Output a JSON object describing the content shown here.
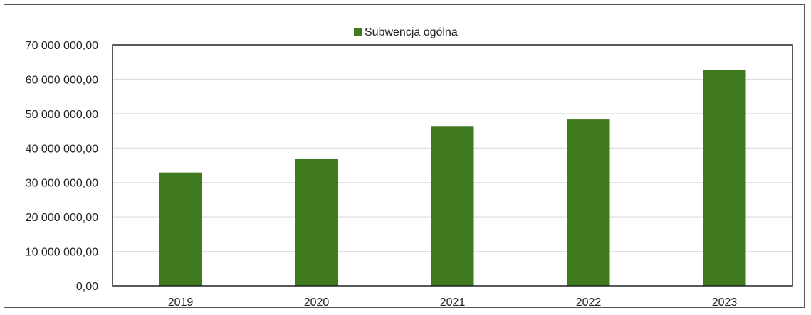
{
  "chart_data": {
    "type": "bar",
    "categories": [
      "2019",
      "2020",
      "2021",
      "2022",
      "2023"
    ],
    "series": [
      {
        "name": "Subwencja ogólna",
        "values": [
          32900000,
          36800000,
          46400000,
          48300000,
          62700000
        ],
        "color": "#3f7a1f"
      }
    ],
    "ylim": [
      0,
      70000000
    ],
    "yticks": [
      0,
      10000000,
      20000000,
      30000000,
      40000000,
      50000000,
      60000000,
      70000000
    ],
    "ytick_labels": [
      "0,00",
      "10 000 000,00",
      "20 000 000,00",
      "30 000 000,00",
      "40 000 000,00",
      "50 000 000,00",
      "60 000 000,00",
      "70 000 000,00"
    ],
    "grid": true,
    "legend": "top-center",
    "title": "",
    "xlabel": "",
    "ylabel": ""
  }
}
